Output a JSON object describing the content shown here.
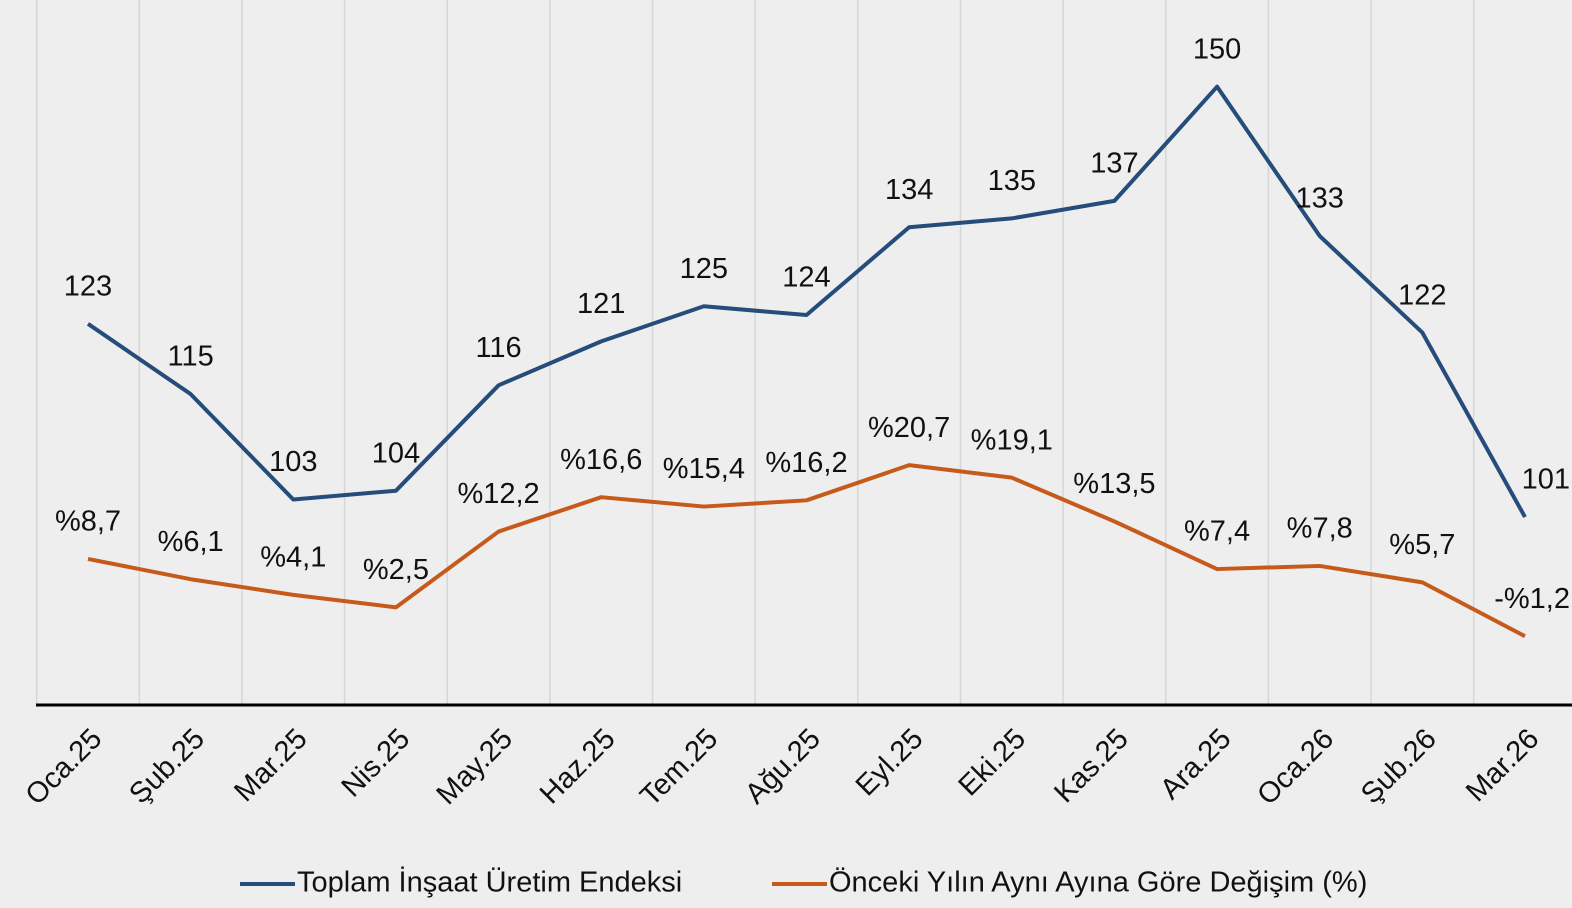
{
  "chart_data": {
    "type": "line",
    "categories": [
      "Oca.25",
      "Şub.25",
      "Mar.25",
      "Nis.25",
      "May.25",
      "Haz.25",
      "Tem.25",
      "Ağu.25",
      "Eyl.25",
      "Eki.25",
      "Kas.25",
      "Ara.25",
      "Oca.26",
      "Şub.26",
      "Mar.26"
    ],
    "series": [
      {
        "name": "Toplam İnşaat Üretim Endeksi",
        "color": "#254c7a",
        "values": [
          123,
          115,
          103,
          104,
          116,
          121,
          125,
          124,
          134,
          135,
          137,
          150,
          133,
          122,
          101
        ]
      },
      {
        "name": "Önceki Yılın Aynı Ayına Göre Değişim (%)",
        "color": "#c55a1a",
        "axis": "y2",
        "values": [
          8.7,
          6.1,
          4.1,
          2.5,
          12.2,
          16.6,
          15.4,
          16.2,
          20.7,
          19.1,
          13.5,
          7.4,
          7.8,
          5.7,
          -1.2
        ],
        "value_labels": [
          "%8,7",
          "%6,1",
          "%4,1",
          "%2,5",
          "%12,2",
          "%16,6",
          "%15,4",
          "%16,2",
          "%20,7",
          "%19,1",
          "%13,5",
          "%7,4",
          "%7,8",
          "%5,7",
          "-%1,2"
        ]
      }
    ],
    "ylim": [
      79.6,
      159.3
    ],
    "y2lim": [
      -10,
      79.6
    ],
    "grid": true,
    "legend": "bottom"
  }
}
